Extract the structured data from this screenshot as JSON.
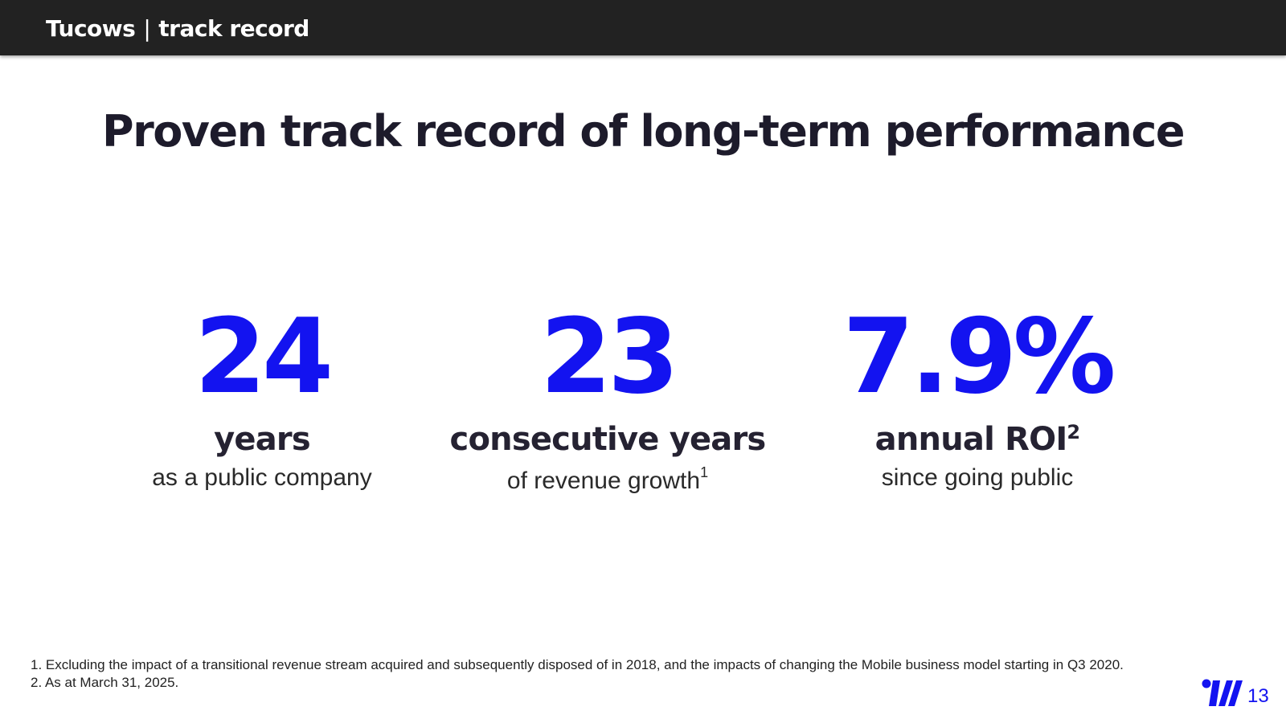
{
  "header": {
    "brand": "Tucows",
    "separator": "|",
    "section": "track record"
  },
  "title": "Proven track record of long-term performance",
  "stats": [
    {
      "value": "24",
      "label": "years",
      "label_note": "",
      "sub": "as a public company",
      "sub_note": ""
    },
    {
      "value": "23",
      "label": "consecutive years",
      "label_note": "",
      "sub": "of revenue growth",
      "sub_note": "1"
    },
    {
      "value": "7.9%",
      "label": "annual ROI",
      "label_note": "2",
      "sub": "since going public",
      "sub_note": ""
    }
  ],
  "footnotes": [
    "1. Excluding the impact of a transitional revenue stream acquired and subsequently disposed of in 2018, and the impacts of changing the Mobile business model starting in Q3 2020.",
    "2. As at March 31, 2025."
  ],
  "footer": {
    "logo_icon": "tucows-logo-icon",
    "page_number": "13"
  },
  "colors": {
    "accent": "#1313f0",
    "header_bg": "#222222",
    "title": "#1d1b2b"
  }
}
